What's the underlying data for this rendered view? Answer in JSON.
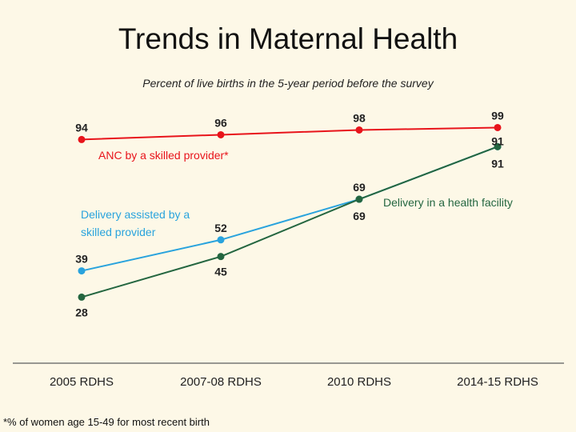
{
  "chart_data": {
    "type": "line",
    "title": "Trends in Maternal Health",
    "subtitle": "Percent of live births in the 5-year period before the survey",
    "categories": [
      "2005 RDHS",
      "2007-08 RDHS",
      "2010 RDHS",
      "2014-15 RDHS"
    ],
    "ylim": [
      0,
      100
    ],
    "grid": false,
    "series": [
      {
        "name": "ANC by a skilled provider*",
        "color": "#e8141b",
        "values": [
          94,
          96,
          98,
          99
        ]
      },
      {
        "name": "Delivery assisted by a skilled provider",
        "name_lines": [
          "Delivery assisted by a",
          "skilled provider"
        ],
        "color": "#29a3dd",
        "values": [
          39,
          52,
          69,
          91
        ]
      },
      {
        "name": "Delivery in a health facility",
        "color": "#246640",
        "values": [
          28,
          45,
          69,
          91
        ]
      }
    ],
    "footnote": "*% of women age 15-49 for most recent birth"
  }
}
